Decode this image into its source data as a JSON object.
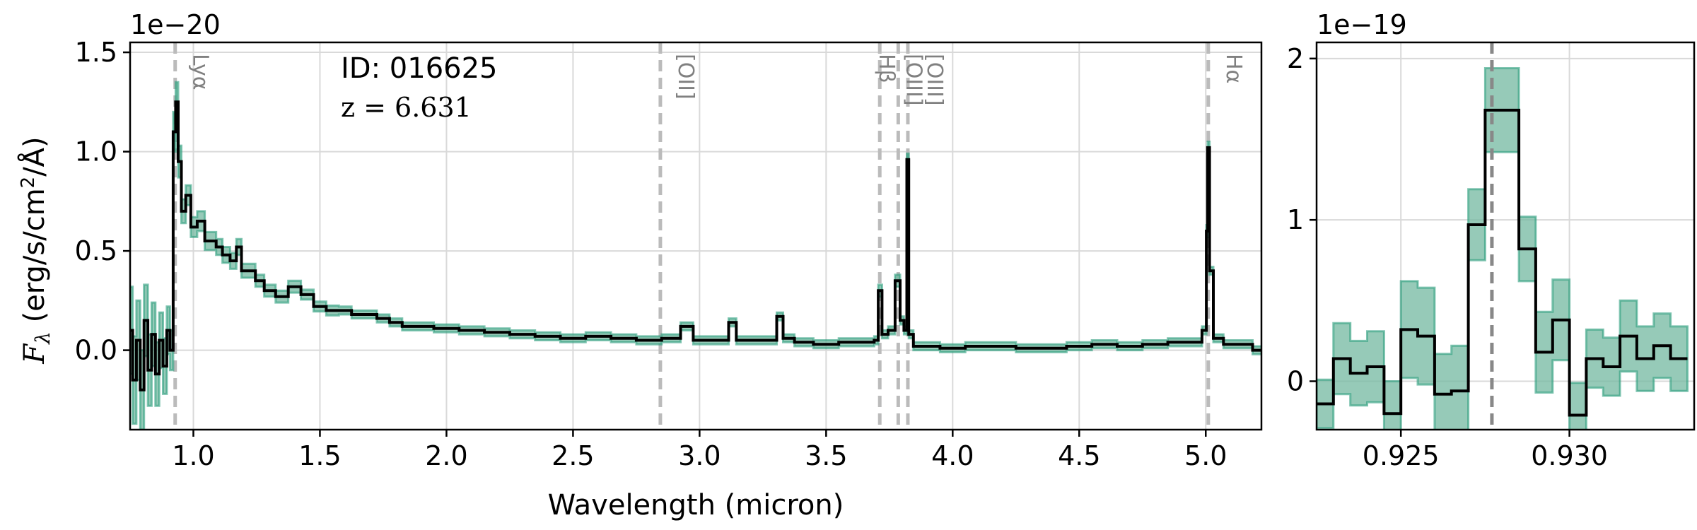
{
  "chart_data": [
    {
      "type": "line",
      "panel": "main",
      "xlabel": "Wavelength (micron)",
      "ylabel": "F_λ (erg/s/cm²/Å)",
      "ylabel_parts": {
        "sym": "F",
        "sub": "λ",
        "pre": " (erg/s/cm",
        "sup": "2",
        "post": "/Å)"
      },
      "xlim": [
        0.75,
        5.22
      ],
      "ylim": [
        -0.4,
        1.55
      ],
      "y_scale_label": "1e−20",
      "xticks": [
        1.0,
        1.5,
        2.0,
        2.5,
        3.0,
        3.5,
        4.0,
        4.5,
        5.0
      ],
      "xtick_labels": [
        "1.0",
        "1.5",
        "2.0",
        "2.5",
        "3.0",
        "3.5",
        "4.0",
        "4.5",
        "5.0"
      ],
      "yticks": [
        0.0,
        0.5,
        1.0,
        1.5
      ],
      "ytick_labels": [
        "0.0",
        "0.5",
        "1.0",
        "1.5"
      ],
      "grid": true,
      "annotation_id": "ID: 016625",
      "annotation_z": "z = 6.631",
      "lines": [
        {
          "x": 0.928,
          "label": "Lyα"
        },
        {
          "x": 2.845,
          "label": "[OII]"
        },
        {
          "x": 3.712,
          "label": "Hβ"
        },
        {
          "x": 3.785,
          "label": "[OIII]"
        },
        {
          "x": 3.823,
          "label": "[OIII]"
        },
        {
          "x": 5.01,
          "label": "Hα"
        }
      ],
      "series": [
        {
          "role": "flux",
          "color": "#000000",
          "x": [
            0.75,
            0.77,
            0.78,
            0.8,
            0.81,
            0.83,
            0.84,
            0.86,
            0.87,
            0.89,
            0.9,
            0.915,
            0.925,
            0.935,
            0.945,
            0.96,
            0.98,
            1.0,
            1.03,
            1.06,
            1.08,
            1.1,
            1.13,
            1.16,
            1.18,
            1.2,
            1.23,
            1.26,
            1.3,
            1.35,
            1.4,
            1.45,
            1.5,
            1.55,
            1.6,
            1.65,
            1.7,
            1.75,
            1.8,
            1.85,
            1.9,
            2.0,
            2.1,
            2.2,
            2.3,
            2.4,
            2.5,
            2.6,
            2.7,
            2.8,
            2.9,
            2.95,
            3.0,
            3.1,
            3.13,
            3.16,
            3.2,
            3.3,
            3.31,
            3.35,
            3.4,
            3.5,
            3.6,
            3.68,
            3.7,
            3.712,
            3.73,
            3.76,
            3.785,
            3.8,
            3.815,
            3.823,
            3.83,
            3.86,
            3.9,
            4.0,
            4.1,
            4.2,
            4.3,
            4.4,
            4.5,
            4.6,
            4.7,
            4.8,
            4.9,
            4.97,
            5.0,
            5.005,
            5.01,
            5.02,
            5.04,
            5.1,
            5.15,
            5.22
          ],
          "y": [
            0.1,
            -0.15,
            0.05,
            -0.2,
            0.15,
            -0.1,
            0.08,
            -0.12,
            0.05,
            -0.08,
            0.1,
            0.0,
            1.1,
            1.25,
            0.95,
            0.7,
            0.78,
            0.62,
            0.65,
            0.55,
            0.55,
            0.52,
            0.48,
            0.45,
            0.52,
            0.4,
            0.4,
            0.35,
            0.3,
            0.27,
            0.32,
            0.28,
            0.22,
            0.2,
            0.2,
            0.18,
            0.18,
            0.16,
            0.14,
            0.12,
            0.12,
            0.11,
            0.1,
            0.09,
            0.08,
            0.07,
            0.06,
            0.07,
            0.06,
            0.05,
            0.06,
            0.12,
            0.05,
            0.05,
            0.14,
            0.05,
            0.05,
            0.05,
            0.17,
            0.06,
            0.04,
            0.03,
            0.04,
            0.04,
            0.05,
            0.3,
            0.08,
            0.1,
            0.35,
            0.15,
            0.1,
            0.96,
            0.08,
            0.02,
            0.02,
            0.01,
            0.02,
            0.02,
            0.01,
            0.01,
            0.02,
            0.03,
            0.02,
            0.03,
            0.04,
            0.04,
            0.1,
            0.6,
            1.02,
            0.4,
            0.06,
            0.03,
            0.03,
            0.0
          ],
          "err": [
            0.22,
            0.22,
            0.2,
            0.2,
            0.18,
            0.18,
            0.16,
            0.16,
            0.14,
            0.14,
            0.12,
            0.1,
            0.1,
            0.1,
            0.08,
            0.06,
            0.05,
            0.05,
            0.05,
            0.045,
            0.045,
            0.04,
            0.04,
            0.04,
            0.04,
            0.035,
            0.035,
            0.03,
            0.03,
            0.03,
            0.03,
            0.025,
            0.025,
            0.025,
            0.02,
            0.02,
            0.02,
            0.02,
            0.02,
            0.02,
            0.02,
            0.02,
            0.02,
            0.02,
            0.02,
            0.02,
            0.02,
            0.02,
            0.02,
            0.02,
            0.02,
            0.02,
            0.02,
            0.02,
            0.02,
            0.02,
            0.02,
            0.02,
            0.02,
            0.02,
            0.02,
            0.02,
            0.02,
            0.02,
            0.02,
            0.03,
            0.02,
            0.02,
            0.03,
            0.02,
            0.02,
            0.03,
            0.02,
            0.02,
            0.02,
            0.02,
            0.02,
            0.02,
            0.02,
            0.02,
            0.02,
            0.02,
            0.02,
            0.02,
            0.02,
            0.02,
            0.02,
            0.03,
            0.03,
            0.02,
            0.02,
            0.02,
            0.02,
            0.02
          ]
        }
      ],
      "colors": {
        "flux": "#000000",
        "error_band": "#2a9d7c",
        "error_band_fill": "#73b8a0",
        "line_marker": "#bbbbbb"
      }
    },
    {
      "type": "line",
      "panel": "zoom",
      "xlim": [
        0.9225,
        0.9337
      ],
      "ylim": [
        -0.3,
        2.1
      ],
      "y_scale_label": "1e−19",
      "xticks": [
        0.925,
        0.93
      ],
      "xtick_labels": [
        "0.925",
        "0.930"
      ],
      "yticks": [
        0,
        1,
        2
      ],
      "ytick_labels": [
        "0",
        "1",
        "2"
      ],
      "grid": true,
      "marker_x": 0.9277,
      "series": [
        {
          "role": "flux",
          "color": "#000000",
          "x": [
            0.92275,
            0.92325,
            0.92375,
            0.92425,
            0.92475,
            0.92525,
            0.92575,
            0.92625,
            0.92675,
            0.92725,
            0.92775,
            0.92825,
            0.92875,
            0.92925,
            0.92975,
            0.93025,
            0.93075,
            0.93125,
            0.93175,
            0.93225,
            0.93275,
            0.93325
          ],
          "y": [
            -0.14,
            0.14,
            0.05,
            0.09,
            -0.2,
            0.32,
            0.28,
            -0.08,
            -0.06,
            0.97,
            1.68,
            1.68,
            0.82,
            0.18,
            0.38,
            -0.21,
            0.14,
            0.09,
            0.28,
            0.14,
            0.22,
            0.14
          ],
          "err": [
            0.15,
            0.22,
            0.2,
            0.22,
            0.2,
            0.3,
            0.3,
            0.25,
            0.28,
            0.22,
            0.26,
            0.26,
            0.2,
            0.25,
            0.25,
            0.2,
            0.18,
            0.18,
            0.22,
            0.2,
            0.2,
            0.2
          ]
        }
      ]
    }
  ]
}
